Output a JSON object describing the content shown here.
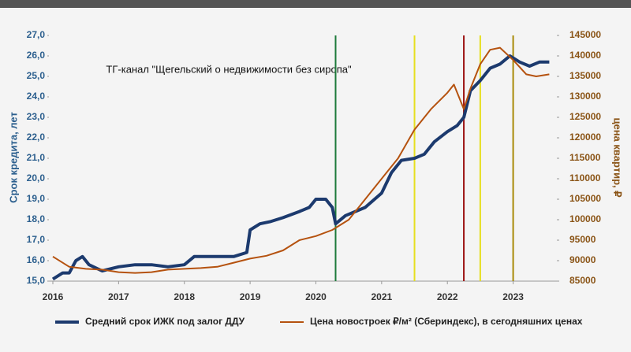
{
  "chart_data": {
    "type": "line",
    "annotation": "ТГ-канал \"Щегельский о недвижимости без сиропа\"",
    "ylabel": "Срок кредита, лет",
    "y2label": "цена квартир, ₽",
    "xlim": [
      2016,
      2023.6
    ],
    "xticks": [
      2016,
      2017,
      2018,
      2019,
      2020,
      2021,
      2022,
      2023
    ],
    "ylim": [
      15,
      27
    ],
    "yticks": [
      {
        "value": 15,
        "label": "15,0"
      },
      {
        "value": 16,
        "label": "16,0"
      },
      {
        "value": 17,
        "label": "17,0"
      },
      {
        "value": 18,
        "label": "18,0"
      },
      {
        "value": 19,
        "label": "19,0"
      },
      {
        "value": 20,
        "label": "20,0"
      },
      {
        "value": 21,
        "label": "21,0"
      },
      {
        "value": 22,
        "label": "22,0"
      },
      {
        "value": 23,
        "label": "23,0"
      },
      {
        "value": 24,
        "label": "24,0"
      },
      {
        "value": 25,
        "label": "25,0"
      },
      {
        "value": 26,
        "label": "26,0"
      },
      {
        "value": 27,
        "label": "27,0"
      }
    ],
    "y2lim": [
      85000,
      145000
    ],
    "y2ticks": [
      85000,
      90000,
      95000,
      100000,
      105000,
      110000,
      115000,
      120000,
      125000,
      130000,
      135000,
      140000,
      145000
    ],
    "vlines": [
      {
        "x": 2020.3,
        "color": "#1d7a3a"
      },
      {
        "x": 2021.5,
        "color": "#e6df1e"
      },
      {
        "x": 2022.25,
        "color": "#9c1414"
      },
      {
        "x": 2022.5,
        "color": "#e6df1e"
      },
      {
        "x": 2023.0,
        "color": "#a88a08"
      }
    ],
    "series": [
      {
        "name": "Средний срок ИЖК под залог ДДУ",
        "color": "#1c3a6e",
        "width": 4,
        "x": [
          2016.0,
          2016.15,
          2016.25,
          2016.35,
          2016.45,
          2016.55,
          2016.75,
          2017.0,
          2017.25,
          2017.5,
          2017.75,
          2018.0,
          2018.15,
          2018.3,
          2018.5,
          2018.75,
          2018.95,
          2019.0,
          2019.15,
          2019.3,
          2019.5,
          2019.75,
          2019.9,
          2020.0,
          2020.15,
          2020.25,
          2020.3,
          2020.45,
          2020.6,
          2020.75,
          2021.0,
          2021.15,
          2021.3,
          2021.5,
          2021.65,
          2021.8,
          2022.0,
          2022.15,
          2022.25,
          2022.35,
          2022.5,
          2022.65,
          2022.8,
          2022.95,
          2023.1,
          2023.25,
          2023.4,
          2023.55
        ],
        "values": [
          15.1,
          15.4,
          15.4,
          16.0,
          16.2,
          15.8,
          15.5,
          15.7,
          15.8,
          15.8,
          15.7,
          15.8,
          16.2,
          16.2,
          16.2,
          16.2,
          16.4,
          17.5,
          17.8,
          17.9,
          18.1,
          18.4,
          18.6,
          19.0,
          19.0,
          18.6,
          17.8,
          18.2,
          18.4,
          18.6,
          19.3,
          20.3,
          20.9,
          21.0,
          21.2,
          21.8,
          22.3,
          22.6,
          23.0,
          24.3,
          24.8,
          25.4,
          25.6,
          26.0,
          25.7,
          25.5,
          25.7,
          25.7
        ]
      },
      {
        "name": "Цена новостроек ₽/м² (Сбериндекс), в сегодняшних ценах",
        "color": "#b5520f",
        "width": 2,
        "axis": "y2",
        "x": [
          2016.0,
          2016.25,
          2016.5,
          2016.75,
          2017.0,
          2017.25,
          2017.5,
          2017.75,
          2018.0,
          2018.25,
          2018.5,
          2018.75,
          2019.0,
          2019.25,
          2019.5,
          2019.75,
          2020.0,
          2020.25,
          2020.5,
          2020.75,
          2021.0,
          2021.25,
          2021.5,
          2021.75,
          2022.0,
          2022.1,
          2022.2,
          2022.25,
          2022.35,
          2022.5,
          2022.65,
          2022.8,
          2023.0,
          2023.2,
          2023.35,
          2023.55
        ],
        "values": [
          91000,
          88500,
          88000,
          87800,
          87200,
          87000,
          87200,
          87800,
          88000,
          88200,
          88500,
          89500,
          90500,
          91200,
          92500,
          95000,
          96000,
          97500,
          100000,
          105000,
          110000,
          115000,
          122000,
          127000,
          131000,
          133000,
          129000,
          127000,
          132000,
          138000,
          141500,
          142000,
          139000,
          135500,
          135000,
          135500
        ]
      }
    ]
  }
}
